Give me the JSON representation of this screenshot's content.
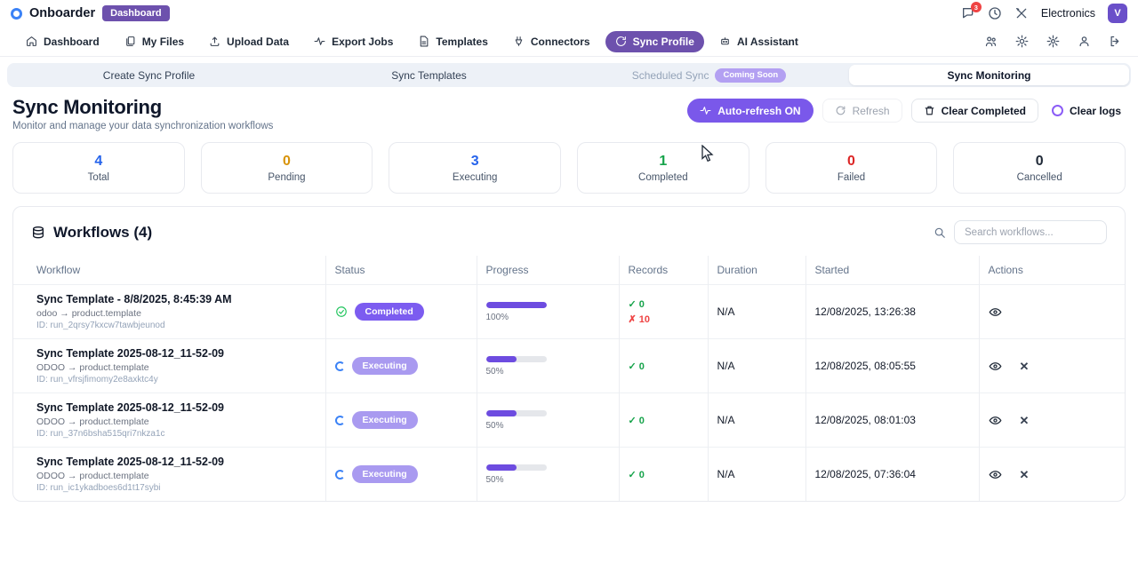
{
  "topbar": {
    "brand": "Onboarder",
    "context_badge": "Dashboard",
    "notification_count": "3",
    "org": "Electronics",
    "avatar_initial": "V"
  },
  "nav": {
    "items": [
      {
        "label": "Dashboard"
      },
      {
        "label": "My Files"
      },
      {
        "label": "Upload Data"
      },
      {
        "label": "Export Jobs"
      },
      {
        "label": "Templates"
      },
      {
        "label": "Connectors"
      },
      {
        "label": "Sync Profile",
        "active": true
      },
      {
        "label": "AI Assistant"
      }
    ]
  },
  "tabs": [
    {
      "label": "Create Sync Profile"
    },
    {
      "label": "Sync Templates"
    },
    {
      "label": "Scheduled Sync",
      "badge": "Coming Soon"
    },
    {
      "label": "Sync Monitoring",
      "active": true
    }
  ],
  "header": {
    "title": "Sync Monitoring",
    "subtitle": "Monitor and manage your data synchronization workflows",
    "auto_refresh_label": "Auto-refresh ON",
    "refresh_label": "Refresh",
    "clear_completed_label": "Clear Completed",
    "clear_logs_label": "Clear logs"
  },
  "stats": [
    {
      "value": "4",
      "label": "Total",
      "color": "#2563eb"
    },
    {
      "value": "0",
      "label": "Pending",
      "color": "#d8930a"
    },
    {
      "value": "3",
      "label": "Executing",
      "color": "#2563eb"
    },
    {
      "value": "1",
      "label": "Completed",
      "color": "#16a34a"
    },
    {
      "value": "0",
      "label": "Failed",
      "color": "#dc2626"
    },
    {
      "value": "0",
      "label": "Cancelled",
      "color": "#1f2937"
    }
  ],
  "workflows": {
    "title": "Workflows (4)",
    "search_placeholder": "Search workflows...",
    "columns": [
      "Workflow",
      "Status",
      "Progress",
      "Records",
      "Duration",
      "Started",
      "Actions"
    ],
    "status_colors": {
      "completed": "#7c5cf0",
      "executing": "#a99af0"
    },
    "rows": [
      {
        "title": "Sync Template - 8/8/2025, 8:45:39 AM",
        "route": "odoo → product.template",
        "run_id": "ID: run_2qrsy7kxcw7tawbjeunod",
        "status": "Completed",
        "progress_pct": 100,
        "progress_label": "100%",
        "records_ok": "✓ 0",
        "records_fail": "✗ 10",
        "duration": "N/A",
        "started": "12/08/2025, 13:26:38"
      },
      {
        "title": "Sync Template 2025-08-12_11-52-09",
        "route": "ODOO → product.template",
        "run_id": "ID: run_vfrsjfimomy2e8axktc4y",
        "status": "Executing",
        "progress_pct": 50,
        "progress_label": "50%",
        "records_ok": "✓ 0",
        "duration": "N/A",
        "started": "12/08/2025, 08:05:55"
      },
      {
        "title": "Sync Template 2025-08-12_11-52-09",
        "route": "ODOO → product.template",
        "run_id": "ID: run_37n6bsha515qri7nkza1c",
        "status": "Executing",
        "progress_pct": 50,
        "progress_label": "50%",
        "records_ok": "✓ 0",
        "duration": "N/A",
        "started": "12/08/2025, 08:01:03"
      },
      {
        "title": "Sync Template 2025-08-12_11-52-09",
        "route": "ODOO → product.template",
        "run_id": "ID: run_ic1ykadboes6d1t17sybi",
        "status": "Executing",
        "progress_pct": 50,
        "progress_label": "50%",
        "records_ok": "✓ 0",
        "duration": "N/A",
        "started": "12/08/2025, 07:36:04"
      }
    ]
  }
}
